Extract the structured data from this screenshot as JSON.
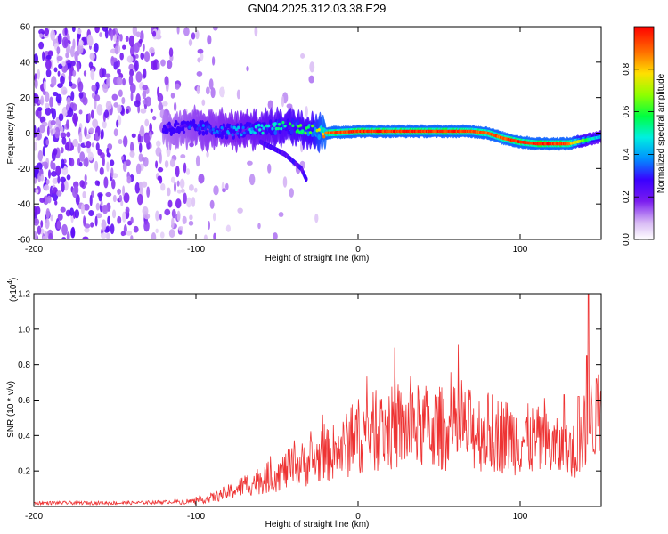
{
  "figure": {
    "title": "GN04.2025.312.03.38.E29"
  },
  "chart_data": [
    {
      "type": "heatmap",
      "xlabel": "Height of straight line (km)",
      "ylabel": "Frequency (Hz)",
      "xlim": [
        -200,
        150
      ],
      "ylim": [
        -60,
        60
      ],
      "xticks": [
        -200,
        -100,
        0,
        100
      ],
      "xtick_labels": [
        "-200",
        "-100",
        "0",
        "100"
      ],
      "yticks": [
        -60,
        -40,
        -20,
        0,
        20,
        40,
        60
      ],
      "ytick_labels": [
        "-60",
        "-40",
        "-20",
        "0",
        "20",
        "40",
        "60"
      ],
      "colorbar": {
        "label": "Normalized spectral amplitude",
        "range": [
          0,
          1
        ],
        "ticks": [
          0.0,
          0.2,
          0.4,
          0.6,
          0.8
        ],
        "tick_labels": [
          "0.0",
          "0.2",
          "0.4",
          "0.6",
          "0.8"
        ],
        "colormap": "rainbow-white-to-red"
      },
      "ridge": {
        "description": "frequency of strongest spectral amplitude vs height",
        "x": [
          -120,
          -100,
          -80,
          -60,
          -45,
          -30,
          -20,
          0,
          20,
          40,
          60,
          70,
          80,
          90,
          100,
          110,
          120,
          130,
          140,
          150
        ],
        "freq": [
          3,
          3,
          1,
          2,
          4,
          2,
          0,
          1,
          1,
          1,
          1,
          1,
          0,
          -3,
          -5,
          -6,
          -6,
          -6,
          -4,
          -2
        ],
        "amplitude": [
          0.2,
          0.3,
          0.35,
          0.45,
          0.55,
          0.6,
          0.9,
          0.95,
          0.95,
          0.95,
          0.95,
          0.9,
          0.9,
          0.9,
          0.95,
          0.95,
          0.95,
          0.9,
          0.6,
          0.4
        ]
      },
      "secondary_feature": {
        "description": "weak descending branch",
        "x": [
          -60,
          -45,
          -35,
          -32
        ],
        "freq": [
          -5,
          -12,
          -20,
          -26
        ]
      },
      "noise_region": {
        "description": "scattered low-amplitude noise at low heights",
        "x_range": [
          -200,
          -75
        ],
        "freq_range": [
          -60,
          60
        ],
        "amplitude_range": [
          0.05,
          0.25
        ]
      }
    },
    {
      "type": "line",
      "xlabel": "Height of straight line (km)",
      "ylabel": "SNR (10 * v/v)",
      "yscale_label": "(x10",
      "yscale_exponent": "4",
      "yscale_suffix": ")",
      "xlim": [
        -200,
        150
      ],
      "ylim": [
        0,
        1.2
      ],
      "xticks": [
        -200,
        -100,
        0,
        100
      ],
      "xtick_labels": [
        "-200",
        "-100",
        "0",
        "100"
      ],
      "yticks": [
        0.2,
        0.4,
        0.6,
        0.8,
        1.0,
        1.2
      ],
      "ytick_labels": [
        "0.2",
        "0.4",
        "0.6",
        "0.8",
        "1.0",
        "1.2"
      ],
      "color": "#ee3333",
      "series": [
        {
          "name": "SNR",
          "x": [
            -200,
            -180,
            -160,
            -140,
            -120,
            -100,
            -90,
            -80,
            -70,
            -60,
            -50,
            -40,
            -30,
            -20,
            -10,
            0,
            10,
            20,
            30,
            40,
            50,
            60,
            70,
            80,
            90,
            100,
            110,
            120,
            130,
            135,
            140,
            145,
            150
          ],
          "y": [
            0.02,
            0.02,
            0.02,
            0.02,
            0.025,
            0.03,
            0.05,
            0.08,
            0.12,
            0.15,
            0.18,
            0.22,
            0.25,
            0.28,
            0.32,
            0.4,
            0.42,
            0.44,
            0.44,
            0.45,
            0.44,
            0.44,
            0.43,
            0.42,
            0.4,
            0.38,
            0.37,
            0.33,
            0.3,
            0.32,
            0.42,
            0.5,
            0.45
          ]
        }
      ],
      "peaks": [
        {
          "x": 142,
          "y": 1.22
        },
        {
          "x": 141,
          "y": 0.85
        },
        {
          "x": 127,
          "y": 0.63
        },
        {
          "x": 136,
          "y": 0.62
        },
        {
          "x": 147,
          "y": 0.72
        },
        {
          "x": 150,
          "y": 0.65
        }
      ]
    }
  ]
}
